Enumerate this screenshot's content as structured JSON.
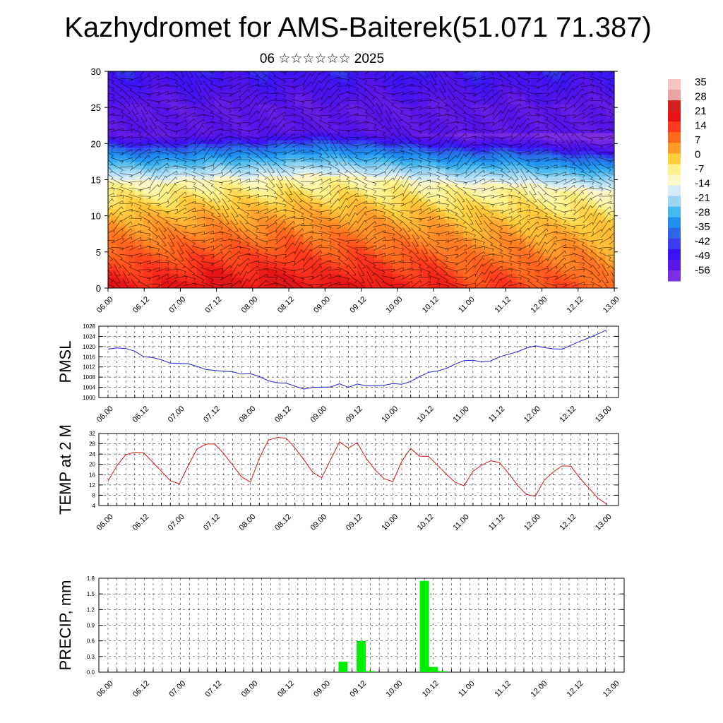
{
  "title": "Kazhydromet for AMS-Baiterek(51.071 71.387)",
  "subtitle": "06 ☆☆☆☆☆☆ 2025",
  "time_labels": [
    "06.00",
    "06.12",
    "07.00",
    "07.12",
    "08.00",
    "08.12",
    "09.00",
    "09.12",
    "10.00",
    "10.12",
    "11.00",
    "11.12",
    "12.00",
    "12.12",
    "13.00"
  ],
  "chart_data": [
    {
      "type": "heatmap",
      "name": "cross-section",
      "x": [
        "06.00",
        "06.12",
        "07.00",
        "07.12",
        "08.00",
        "08.12",
        "09.00",
        "09.12",
        "10.00",
        "10.12",
        "11.00",
        "11.12",
        "12.00",
        "12.12",
        "13.00"
      ],
      "ylim": [
        0,
        30
      ],
      "yticks": [
        0,
        5,
        10,
        15,
        20,
        25,
        30
      ],
      "colorbar_labels": [
        "35",
        "28",
        "21",
        "14",
        "7",
        "0",
        "-7",
        "-14",
        "-21",
        "-28",
        "-35",
        "-42",
        "-49",
        "-56"
      ],
      "colorbar_colors": [
        "#f7c4c4",
        "#e9a3a3",
        "#d21f1f",
        "#e61414",
        "#ff3b1f",
        "#ff6a1f",
        "#ff9c2a",
        "#ffcf3c",
        "#fff28a",
        "#fff8c9",
        "#d6ecf5",
        "#9bd6f2",
        "#45b8f0",
        "#1f8ff0",
        "#2a66e6",
        "#3a3ef0",
        "#3c12f5",
        "#5a16e8",
        "#7a2ee0"
      ],
      "column_profiles": [
        {
          "x": 0,
          "freeze": 15.0,
          "bottom": 28
        },
        {
          "x": 1,
          "freeze": 14.6,
          "bottom": 26
        },
        {
          "x": 2,
          "freeze": 14.8,
          "bottom": 28
        },
        {
          "x": 3,
          "freeze": 15.1,
          "bottom": 31
        },
        {
          "x": 4,
          "freeze": 15.0,
          "bottom": 29
        },
        {
          "x": 5,
          "freeze": 15.4,
          "bottom": 32
        },
        {
          "x": 6,
          "freeze": 15.6,
          "bottom": 27
        },
        {
          "x": 7,
          "freeze": 15.3,
          "bottom": 30
        },
        {
          "x": 8,
          "freeze": 15.0,
          "bottom": 25
        },
        {
          "x": 9,
          "freeze": 14.6,
          "bottom": 27
        },
        {
          "x": 10,
          "freeze": 14.2,
          "bottom": 20
        },
        {
          "x": 11,
          "freeze": 14.4,
          "bottom": 22
        },
        {
          "x": 12,
          "freeze": 14.0,
          "bottom": 18
        },
        {
          "x": 13,
          "freeze": 13.6,
          "bottom": 19
        },
        {
          "x": 14,
          "freeze": 13.4,
          "bottom": 12
        }
      ]
    },
    {
      "type": "line",
      "name": "pmsl",
      "ylabel": "PMSL",
      "ylim": [
        1000,
        1028
      ],
      "yticks": [
        1000,
        1004,
        1008,
        1012,
        1016,
        1020,
        1024,
        1028
      ],
      "color": "#1f1fd6",
      "x": [
        "06.00",
        "06.03",
        "06.06",
        "06.09",
        "06.12",
        "06.15",
        "06.18",
        "06.21",
        "07.00",
        "07.03",
        "07.06",
        "07.09",
        "07.12",
        "07.15",
        "07.18",
        "07.21",
        "08.00",
        "08.03",
        "08.06",
        "08.09",
        "08.12",
        "08.15",
        "08.18",
        "08.21",
        "09.00",
        "09.03",
        "09.06",
        "09.09",
        "09.12",
        "09.15",
        "09.18",
        "09.21",
        "10.00",
        "10.03",
        "10.06",
        "10.09",
        "10.12",
        "10.15",
        "10.18",
        "10.21",
        "11.00",
        "11.03",
        "11.06",
        "11.09",
        "11.12",
        "11.15",
        "11.18",
        "11.21",
        "12.00",
        "12.03",
        "12.06",
        "12.09",
        "12.12",
        "12.15",
        "12.18",
        "12.21",
        "13.00"
      ],
      "values": [
        1019,
        1019.5,
        1019.2,
        1018.2,
        1016,
        1015.7,
        1014.8,
        1013.5,
        1013.4,
        1013.3,
        1012.2,
        1011,
        1010.6,
        1010.3,
        1010.1,
        1009.2,
        1009.4,
        1008.2,
        1006.6,
        1005.8,
        1005.6,
        1004.5,
        1003.3,
        1004,
        1004.1,
        1004.1,
        1005.4,
        1004,
        1005.3,
        1004.6,
        1004.6,
        1004.8,
        1005.5,
        1005.2,
        1006.3,
        1008.2,
        1009.9,
        1010.4,
        1011.4,
        1013.1,
        1014.5,
        1014.6,
        1014,
        1014.4,
        1016,
        1017,
        1018,
        1019.4,
        1020.3,
        1019.6,
        1019.1,
        1019,
        1020.5,
        1022.1,
        1023.4,
        1024.9,
        1026.5
      ]
    },
    {
      "type": "line",
      "name": "temp-2m",
      "ylabel": "TEMP at 2 M",
      "ylim": [
        4,
        32
      ],
      "yticks": [
        4,
        8,
        12,
        16,
        20,
        24,
        28,
        32
      ],
      "color": "#d11a1a",
      "x": [
        "06.00",
        "06.03",
        "06.06",
        "06.09",
        "06.12",
        "06.15",
        "06.18",
        "06.21",
        "07.00",
        "07.03",
        "07.06",
        "07.09",
        "07.12",
        "07.15",
        "07.18",
        "07.21",
        "08.00",
        "08.03",
        "08.06",
        "08.09",
        "08.12",
        "08.15",
        "08.18",
        "08.21",
        "09.00",
        "09.03",
        "09.06",
        "09.09",
        "09.12",
        "09.15",
        "09.18",
        "09.21",
        "10.00",
        "10.03",
        "10.06",
        "10.09",
        "10.12",
        "10.15",
        "10.18",
        "10.21",
        "11.00",
        "11.03",
        "11.06",
        "11.09",
        "11.12",
        "11.15",
        "11.18",
        "11.21",
        "12.00",
        "12.03",
        "12.06",
        "12.09",
        "12.12",
        "12.15",
        "12.18",
        "12.21",
        "13.00"
      ],
      "values": [
        13.5,
        19.5,
        23.8,
        24.7,
        24.5,
        21,
        17.3,
        13.7,
        12.4,
        19.5,
        26,
        27.9,
        27.9,
        24.2,
        19.7,
        15.2,
        13.1,
        22.4,
        29.4,
        30.5,
        30.2,
        26.4,
        21.8,
        16.9,
        14.8,
        21.8,
        28.8,
        26.3,
        28.4,
        22.4,
        17.9,
        14.5,
        13.3,
        21.2,
        26.2,
        23.2,
        23.1,
        19.7,
        16.2,
        13,
        11.7,
        17.3,
        19.8,
        21.4,
        20.7,
        16.5,
        11.9,
        8.3,
        7.6,
        13.8,
        17,
        19.4,
        19.3,
        14.7,
        10.9,
        7,
        4.6
      ]
    },
    {
      "type": "bar",
      "name": "precip",
      "ylabel": "PRECIP, mm",
      "ylim": [
        0,
        1.8
      ],
      "yticks": [
        "0.0",
        "0.3",
        "0.6",
        "0.9",
        "1.2",
        "1.5",
        "1.8"
      ],
      "color": "#00ee00",
      "x": [
        "09.06",
        "09.09",
        "09.12",
        "09.15",
        "10.09",
        "10.12",
        "10.15"
      ],
      "values": [
        0.2,
        0.0,
        0.6,
        0.02,
        1.75,
        0.1,
        0.02
      ]
    }
  ]
}
